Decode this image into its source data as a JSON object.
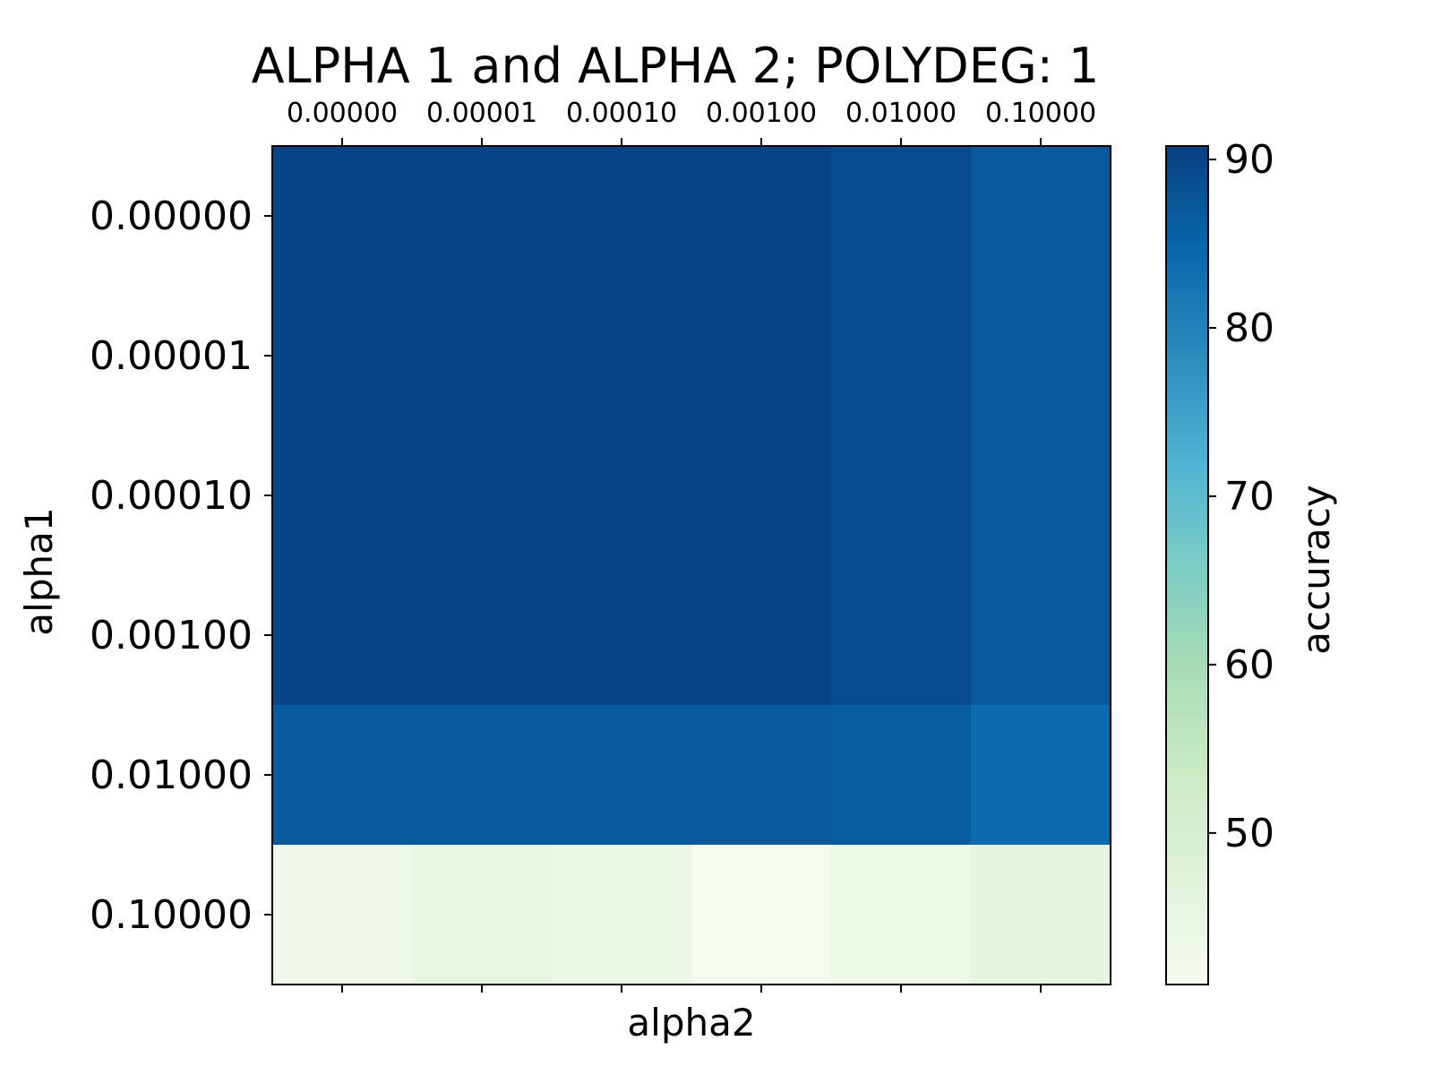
{
  "chart_data": {
    "type": "heatmap",
    "title": "ALPHA 1 and ALPHA 2; POLYDEG: 1",
    "xlabel": "alpha2",
    "ylabel": "alpha1",
    "x_categories": [
      "0.00000",
      "0.00001",
      "0.00010",
      "0.00100",
      "0.01000",
      "0.10000"
    ],
    "y_categories": [
      "0.00000",
      "0.00001",
      "0.00010",
      "0.00100",
      "0.01000",
      "0.10000"
    ],
    "values": [
      [
        90.3,
        90.3,
        90.3,
        90.3,
        88.9,
        86.8
      ],
      [
        90.3,
        90.3,
        90.3,
        90.3,
        88.9,
        86.8
      ],
      [
        90.3,
        90.3,
        90.3,
        90.3,
        88.9,
        86.8
      ],
      [
        90.3,
        90.3,
        90.3,
        90.3,
        88.9,
        86.8
      ],
      [
        86.7,
        86.7,
        86.7,
        86.7,
        86.3,
        84.0
      ],
      [
        43.0,
        45.0,
        44.0,
        41.5,
        43.8,
        45.8
      ]
    ],
    "colorbar": {
      "label": "accuracy",
      "ticks": [
        50,
        60,
        70,
        80,
        90
      ],
      "range": [
        41.0,
        90.8
      ],
      "colormap": "GnBu",
      "colors": [
        "#f7fcf0",
        "#e0f3db",
        "#ccebc5",
        "#a8ddb5",
        "#7bccc4",
        "#4eb3d3",
        "#2b8cbe",
        "#0868ac",
        "#084081"
      ]
    },
    "grid": false
  }
}
